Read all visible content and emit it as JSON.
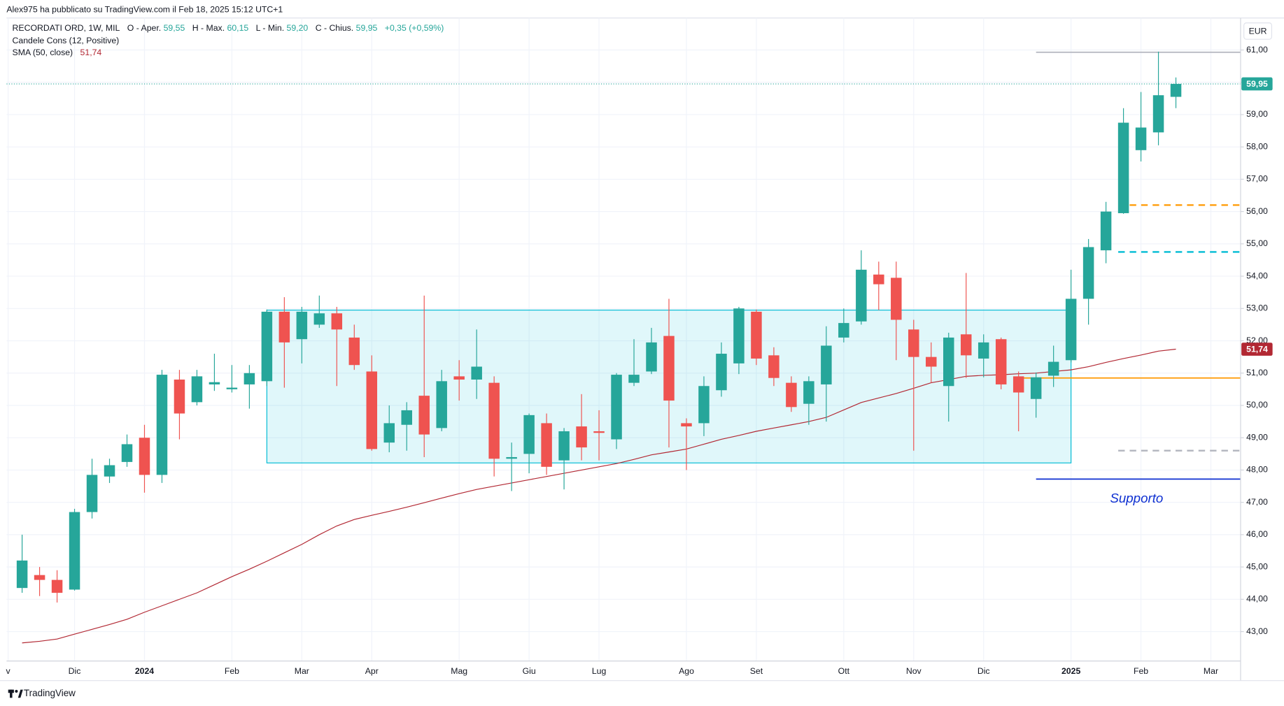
{
  "chart_data": {
    "type": "candlestick",
    "attribution": "Alex975 ha pubblicato su TradingView.com il Feb 18, 2025 15:12 UTC+1",
    "symbol": "RECORDATI ORD, 1W, MIL",
    "legend": [
      {
        "label": "O - Aper.",
        "value": "59,55"
      },
      {
        "label": "H - Max.",
        "value": "60,15"
      },
      {
        "label": "L - Min.",
        "value": "59,20"
      },
      {
        "label": "C - Chius.",
        "value": "59,95"
      }
    ],
    "change": "+0,35 (+0,59%)",
    "indicator_candles": "Candele Cons (12, Positive)",
    "currency": "EUR",
    "brand": "TradingView",
    "up_color": "#26a69a",
    "down_color": "#ef5350",
    "open": [
      44.35,
      44.75,
      44.6,
      44.3,
      46.7,
      47.8,
      48.25,
      49.0,
      47.85,
      50.8,
      50.1,
      50.65,
      50.5,
      50.65,
      50.75,
      52.9,
      52.05,
      52.5,
      52.85,
      52.1,
      51.05,
      48.85,
      49.4,
      50.3,
      49.3,
      50.9,
      50.8,
      50.7,
      48.35,
      48.5,
      49.45,
      48.3,
      49.35,
      49.2,
      48.95,
      50.7,
      51.05,
      52.15,
      49.45,
      49.45,
      50.47,
      51.3,
      52.9,
      51.55,
      50.7,
      50.05,
      50.65,
      52.1,
      52.6,
      54.05,
      53.95,
      52.35,
      51.5,
      50.6,
      52.2,
      51.45,
      52.05,
      50.9,
      50.2,
      50.92,
      51.4,
      53.3,
      54.8,
      55.95,
      57.9,
      58.45,
      59.55
    ],
    "high": [
      46.0,
      45.0,
      44.9,
      46.8,
      48.35,
      48.35,
      49.1,
      49.4,
      51.1,
      51.1,
      51.1,
      51.6,
      51.25,
      51.25,
      52.97,
      53.35,
      53.05,
      53.4,
      53.05,
      52.5,
      51.55,
      50.0,
      50.1,
      53.4,
      51.1,
      51.4,
      52.35,
      50.9,
      48.85,
      49.75,
      49.75,
      49.3,
      50.35,
      49.85,
      51.0,
      52.05,
      52.4,
      53.3,
      49.6,
      50.9,
      51.95,
      53.05,
      52.97,
      51.8,
      50.9,
      50.9,
      52.45,
      53.0,
      54.8,
      54.45,
      54.45,
      52.65,
      51.95,
      52.25,
      54.1,
      52.2,
      52.1,
      51.05,
      51.02,
      51.85,
      54.2,
      55.15,
      56.3,
      59.2,
      59.7,
      60.95,
      60.15
    ],
    "low": [
      44.2,
      44.1,
      43.9,
      44.27,
      46.5,
      47.6,
      48.1,
      47.3,
      47.6,
      48.95,
      50.0,
      50.45,
      50.4,
      49.9,
      50.6,
      50.55,
      51.3,
      52.4,
      50.6,
      51.1,
      48.6,
      48.55,
      48.6,
      48.4,
      49.2,
      50.15,
      50.2,
      47.8,
      47.35,
      47.9,
      47.85,
      47.4,
      48.3,
      48.3,
      48.65,
      50.6,
      50.97,
      48.7,
      48.0,
      49.05,
      50.27,
      50.97,
      51.25,
      50.6,
      49.8,
      49.4,
      49.5,
      51.95,
      52.5,
      52.95,
      51.4,
      48.6,
      50.7,
      49.5,
      50.85,
      50.87,
      50.5,
      49.2,
      49.62,
      50.57,
      51.33,
      52.5,
      54.4,
      55.93,
      57.55,
      58.05,
      59.2
    ],
    "close": [
      45.2,
      44.6,
      44.2,
      46.7,
      47.85,
      48.15,
      48.8,
      47.85,
      50.95,
      49.75,
      50.9,
      50.72,
      50.55,
      51.0,
      52.9,
      51.95,
      52.9,
      52.85,
      52.35,
      51.25,
      48.65,
      49.45,
      49.85,
      49.1,
      50.75,
      50.8,
      51.2,
      48.35,
      48.4,
      49.7,
      48.1,
      49.2,
      48.7,
      49.15,
      50.95,
      50.95,
      51.95,
      50.15,
      49.35,
      50.6,
      51.6,
      53.0,
      51.45,
      50.85,
      49.95,
      50.75,
      51.85,
      52.55,
      54.2,
      53.75,
      52.65,
      51.5,
      51.2,
      52.1,
      51.55,
      51.95,
      50.65,
      50.4,
      50.87,
      51.35,
      53.3,
      54.9,
      56.0,
      58.75,
      58.6,
      59.6,
      59.95
    ],
    "sma": {
      "name": "SMA (50, close)",
      "label": "51,74",
      "color": "#b22833",
      "values": [
        42.65,
        42.7,
        42.77,
        42.92,
        43.07,
        43.22,
        43.38,
        43.6,
        43.8,
        44.0,
        44.2,
        44.45,
        44.7,
        44.93,
        45.18,
        45.44,
        45.7,
        46.0,
        46.27,
        46.47,
        46.6,
        46.72,
        46.85,
        46.99,
        47.13,
        47.27,
        47.4,
        47.5,
        47.6,
        47.7,
        47.8,
        47.9,
        48.0,
        48.1,
        48.2,
        48.33,
        48.47,
        48.56,
        48.65,
        48.8,
        48.95,
        49.07,
        49.2,
        49.3,
        49.4,
        49.5,
        49.63,
        49.86,
        50.09,
        50.23,
        50.37,
        50.53,
        50.7,
        50.8,
        50.9,
        50.93,
        50.95,
        50.98,
        51.0,
        51.05,
        51.1,
        51.2,
        51.33,
        51.45,
        51.56,
        51.68,
        51.74
      ]
    },
    "xlim": [
      -0.89,
      69.7
    ],
    "xticks": [
      {
        "value": -0.8,
        "label": "v"
      },
      {
        "value": 3,
        "label": "Dic"
      },
      {
        "value": 7,
        "label": "2024"
      },
      {
        "value": 12,
        "label": "Feb"
      },
      {
        "value": 16,
        "label": "Mar"
      },
      {
        "value": 20,
        "label": "Apr"
      },
      {
        "value": 25,
        "label": "Mag"
      },
      {
        "value": 29,
        "label": "Giu"
      },
      {
        "value": 33,
        "label": "Lug"
      },
      {
        "value": 38,
        "label": "Ago"
      },
      {
        "value": 42,
        "label": "Set"
      },
      {
        "value": 47,
        "label": "Ott"
      },
      {
        "value": 51,
        "label": "Nov"
      },
      {
        "value": 55,
        "label": "Dic"
      },
      {
        "value": 60,
        "label": "2025"
      },
      {
        "value": 64,
        "label": "Feb"
      },
      {
        "value": 68,
        "label": "Mar"
      }
    ],
    "ylim": [
      42.09,
      61.99
    ],
    "yticks": [
      {
        "value": 43,
        "label": "43,00"
      },
      {
        "value": 44,
        "label": "44,00"
      },
      {
        "value": 45,
        "label": "45,00"
      },
      {
        "value": 46,
        "label": "46,00"
      },
      {
        "value": 47,
        "label": "47,00"
      },
      {
        "value": 48,
        "label": "48,00"
      },
      {
        "value": 49,
        "label": "49,00"
      },
      {
        "value": 50,
        "label": "50,00"
      },
      {
        "value": 51,
        "label": "51,00"
      },
      {
        "value": 52,
        "label": "52,00"
      },
      {
        "value": 53,
        "label": "53,00"
      },
      {
        "value": 54,
        "label": "54,00"
      },
      {
        "value": 55,
        "label": "55,00"
      },
      {
        "value": 56,
        "label": "56,00"
      },
      {
        "value": 57,
        "label": "57,00"
      },
      {
        "value": 58,
        "label": "58,00"
      },
      {
        "value": 59,
        "label": "59,00"
      },
      {
        "value": 60,
        "label": "60,00"
      },
      {
        "value": 61,
        "label": "61,00"
      }
    ],
    "grid": true,
    "last_price": {
      "value": 59.95,
      "label": "59,95",
      "color": "#26a69a"
    },
    "rectangle": {
      "from": 14,
      "to": 60,
      "top": 52.95,
      "bottom": 48.22,
      "color": "#00bcd4"
    },
    "levels": [
      {
        "value": 60.93,
        "from": 58,
        "color": "#b2b5be",
        "dashed": false
      },
      {
        "value": 56.2,
        "from": 62.7,
        "color": "#ff9800",
        "dashed": true
      },
      {
        "value": 54.75,
        "from": 62.7,
        "color": "#00bcd4",
        "dashed": true
      },
      {
        "value": 50.85,
        "from": 57,
        "color": "#ff9800",
        "dashed": false
      },
      {
        "value": 48.6,
        "from": 62.7,
        "color": "#b2b5be",
        "dashed": true
      },
      {
        "value": 47.72,
        "from": 58,
        "color": "#0d2fd1",
        "dashed": false
      }
    ],
    "annotation": "Supporto"
  }
}
